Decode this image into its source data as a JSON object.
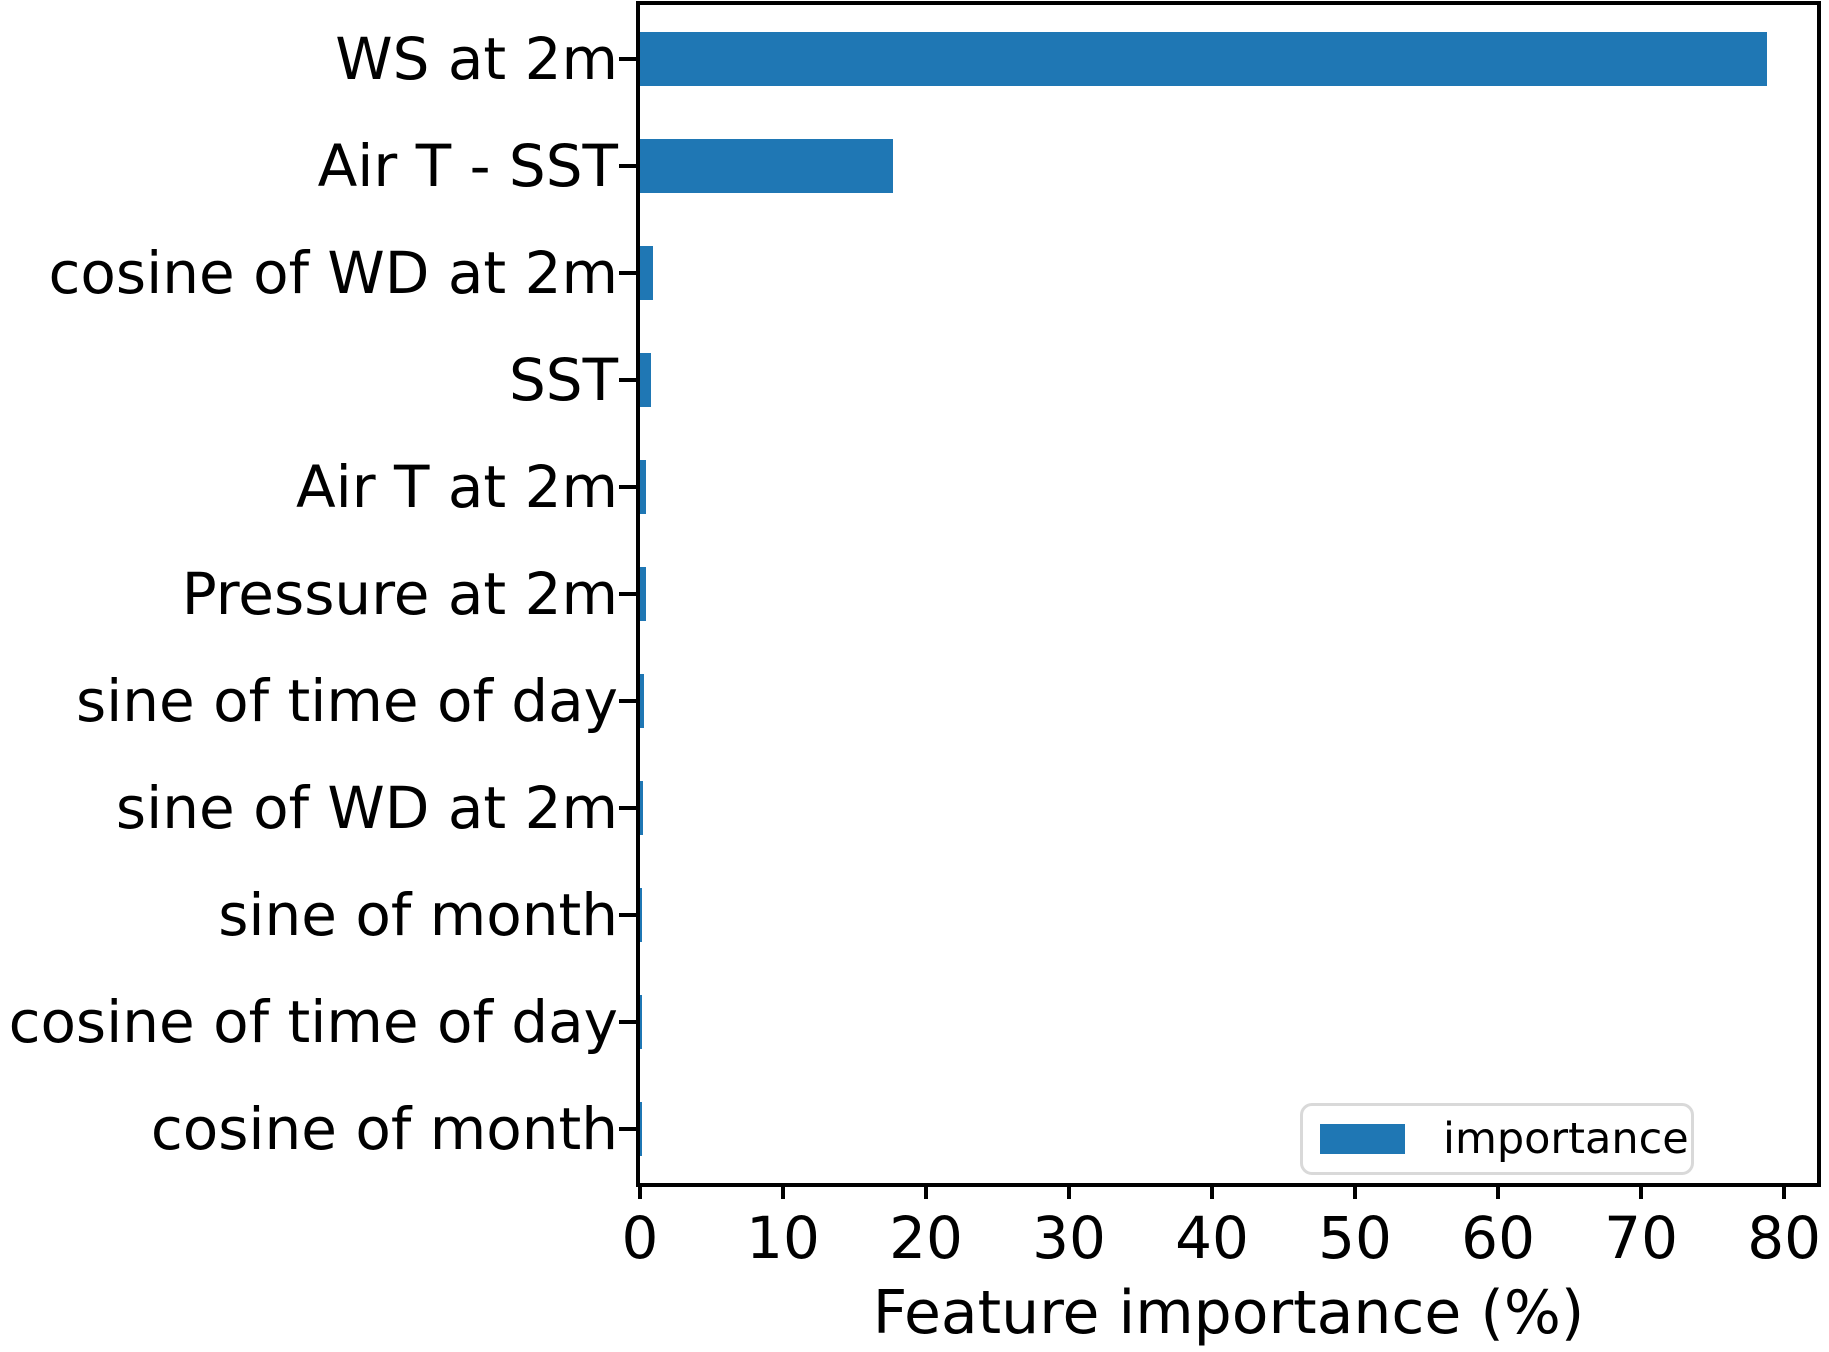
{
  "colors": {
    "bar": "#1f77b4",
    "spine": "#000000",
    "legend_border": "#d9d9d9",
    "text": "#000000"
  },
  "legend": {
    "label": "importance"
  },
  "chart_data": {
    "type": "bar",
    "orientation": "horizontal",
    "title": "",
    "xlabel": "Feature importance (%)",
    "ylabel": "",
    "categories": [
      "WS at 2m",
      "Air T - SST",
      "cosine of WD at 2m",
      "SST",
      "Air T at 2m",
      "Pressure at 2m",
      "sine of time of day",
      "sine of WD at 2m",
      "sine of month",
      "cosine of time of day",
      "cosine of month"
    ],
    "values": [
      78.8,
      17.7,
      0.9,
      0.8,
      0.45,
      0.4,
      0.3,
      0.2,
      0.15,
      0.12,
      0.08
    ],
    "series_name": "importance",
    "x_ticks": [
      0,
      10,
      20,
      30,
      40,
      50,
      60,
      70,
      80
    ],
    "xlim": [
      0,
      82.3
    ],
    "grid": false,
    "legend_position": "lower left"
  }
}
